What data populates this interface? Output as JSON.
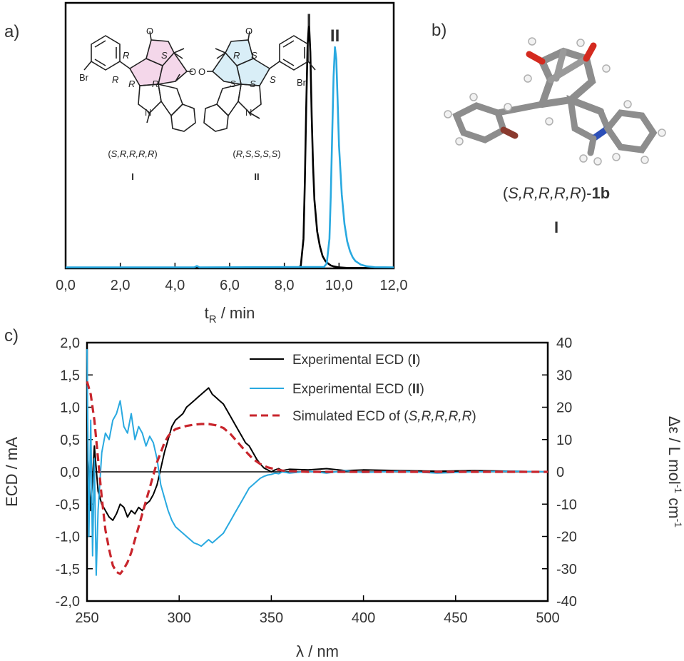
{
  "panels": {
    "a": "a)",
    "b": "b)",
    "c": "c)"
  },
  "chart_data": [
    {
      "type": "line",
      "panel": "a",
      "xlabel_main": "t",
      "xlabel_sub": "R",
      "xlabel_rest": " / min",
      "ylabel": "",
      "xlim": [
        0,
        12
      ],
      "ylim": [
        0,
        1.08
      ],
      "x_ticks": [
        "0,0",
        "2,0",
        "4,0",
        "6,0",
        "8,0",
        "10,0",
        "12,0"
      ],
      "x_tick_values": [
        0,
        2,
        4,
        6,
        8,
        10,
        12
      ],
      "peak_labels": [
        {
          "text": "I",
          "x": 8.9,
          "color": "#111111"
        },
        {
          "text": "II",
          "x": 9.85,
          "color": "#1a1a1a"
        }
      ],
      "series": [
        {
          "color": "#000000",
          "x": [
            0,
            8.5,
            8.6,
            8.7,
            8.75,
            8.8,
            8.85,
            8.9,
            8.95,
            9.0,
            9.05,
            9.1,
            9.2,
            9.3,
            9.4,
            9.5,
            9.6,
            9.7,
            9.8,
            10.0,
            10.3,
            12.0
          ],
          "values": [
            0.002,
            0.003,
            0.01,
            0.12,
            0.35,
            0.65,
            0.9,
            1.0,
            0.88,
            0.62,
            0.42,
            0.28,
            0.15,
            0.09,
            0.05,
            0.03,
            0.02,
            0.012,
            0.008,
            0.004,
            0.002,
            0.002
          ]
        },
        {
          "color": "#29a9e0",
          "x": [
            0,
            4.7,
            4.8,
            4.9,
            9.45,
            9.55,
            9.65,
            9.7,
            9.75,
            9.8,
            9.85,
            9.9,
            9.95,
            10.0,
            10.1,
            10.2,
            10.3,
            10.4,
            10.5,
            10.6,
            10.8,
            11.0,
            11.3,
            12.0
          ],
          "values": [
            0.004,
            0.004,
            0.01,
            0.004,
            0.006,
            0.02,
            0.12,
            0.3,
            0.55,
            0.78,
            0.9,
            0.85,
            0.68,
            0.5,
            0.3,
            0.18,
            0.11,
            0.07,
            0.045,
            0.03,
            0.015,
            0.009,
            0.005,
            0.004
          ]
        }
      ]
    },
    {
      "type": "line",
      "panel": "c",
      "xlabel": "λ / nm",
      "ylabel": "ECD / mA",
      "ylabel2_main": "Δε / L mol",
      "ylabel2_sup1": "-1",
      "ylabel2_mid": " cm",
      "ylabel2_sup2": "-1",
      "xlim": [
        250,
        500
      ],
      "ylim": [
        -2.0,
        2.0
      ],
      "ylim2": [
        -40,
        40
      ],
      "x_ticks": [
        "250",
        "300",
        "350",
        "400",
        "450",
        "500"
      ],
      "x_tick_values": [
        250,
        300,
        350,
        400,
        450,
        500
      ],
      "y_ticks": [
        "2,0",
        "1,5",
        "1,0",
        "0,5",
        "0,0",
        "-0,5",
        "-1,0",
        "-1,5",
        "-2,0"
      ],
      "y_tick_values": [
        2.0,
        1.5,
        1.0,
        0.5,
        0.0,
        -0.5,
        -1.0,
        -1.5,
        -2.0
      ],
      "y2_ticks": [
        "40",
        "30",
        "20",
        "10",
        "0",
        "-10",
        "-20",
        "-30",
        "-40"
      ],
      "y2_tick_values": [
        40,
        30,
        20,
        10,
        0,
        -10,
        -20,
        -30,
        -40
      ],
      "legend": {
        "exp1_text": "Experimental ECD (",
        "exp1_bold": "I",
        "exp2_text": "Experimental ECD (",
        "exp2_bold": "II",
        "sim_text": "Simulated ECD of (",
        "sim_italic": "S,R,R,R,R",
        "close_paren": ")"
      },
      "series": [
        {
          "style": "solid",
          "color": "#000000",
          "x": [
            250,
            252,
            254,
            256,
            258,
            260,
            262,
            264,
            266,
            268,
            270,
            272,
            274,
            276,
            278,
            280,
            282,
            284,
            286,
            288,
            290,
            292,
            294,
            296,
            298,
            300,
            302,
            304,
            306,
            308,
            310,
            312,
            314,
            316,
            318,
            320,
            322,
            324,
            326,
            328,
            330,
            332,
            334,
            336,
            338,
            340,
            342,
            344,
            346,
            348,
            350,
            352,
            354,
            356,
            360,
            370,
            380,
            390,
            400,
            420,
            440,
            460,
            480,
            500
          ],
          "values": [
            0.5,
            -0.6,
            0.4,
            -0.3,
            -0.5,
            -0.6,
            -0.7,
            -0.75,
            -0.65,
            -0.5,
            -0.55,
            -0.7,
            -0.6,
            -0.65,
            -0.55,
            -0.6,
            -0.5,
            -0.45,
            -0.35,
            -0.2,
            0.05,
            0.3,
            0.5,
            0.7,
            0.8,
            0.85,
            0.9,
            1.0,
            1.05,
            1.1,
            1.15,
            1.2,
            1.25,
            1.3,
            1.2,
            1.15,
            1.1,
            1.05,
            0.95,
            0.85,
            0.75,
            0.65,
            0.55,
            0.45,
            0.4,
            0.3,
            0.2,
            0.12,
            0.06,
            0.03,
            0.0,
            0.03,
            0.05,
            0.02,
            0.04,
            0.03,
            0.05,
            0.02,
            0.03,
            0.02,
            0.01,
            0.02,
            0.01,
            0.0
          ]
        },
        {
          "style": "solid",
          "color": "#29a9e0",
          "x": [
            250,
            251,
            252,
            253,
            254,
            255,
            256,
            258,
            260,
            262,
            264,
            266,
            268,
            270,
            272,
            274,
            276,
            278,
            280,
            282,
            284,
            286,
            288,
            290,
            292,
            294,
            296,
            298,
            300,
            302,
            304,
            306,
            308,
            310,
            312,
            314,
            316,
            318,
            320,
            322,
            324,
            326,
            328,
            330,
            332,
            334,
            336,
            338,
            340,
            342,
            344,
            346,
            348,
            350,
            352,
            354,
            356,
            360,
            370,
            380,
            390,
            400,
            420,
            440,
            460,
            480,
            500
          ],
          "values": [
            1.9,
            -1.0,
            0.8,
            -1.3,
            0.2,
            -1.6,
            -0.6,
            0.3,
            0.6,
            0.5,
            0.8,
            0.9,
            1.1,
            0.7,
            0.6,
            0.9,
            0.5,
            0.7,
            0.6,
            0.4,
            0.55,
            0.45,
            0.2,
            -0.2,
            -0.4,
            -0.6,
            -0.75,
            -0.85,
            -0.9,
            -0.95,
            -1.0,
            -1.05,
            -1.1,
            -1.12,
            -1.15,
            -1.1,
            -1.05,
            -1.1,
            -1.05,
            -1.0,
            -0.95,
            -0.85,
            -0.75,
            -0.65,
            -0.55,
            -0.45,
            -0.35,
            -0.25,
            -0.2,
            -0.15,
            -0.1,
            -0.07,
            -0.05,
            -0.04,
            -0.02,
            -0.03,
            0.0,
            -0.02,
            0.01,
            -0.02,
            0.02,
            -0.01,
            0.01,
            -0.02,
            0.0,
            0.01,
            0.0
          ]
        },
        {
          "style": "dashed",
          "color": "#c8252c",
          "x": [
            250,
            252,
            254,
            256,
            258,
            260,
            262,
            264,
            266,
            268,
            270,
            272,
            274,
            276,
            278,
            280,
            282,
            284,
            286,
            288,
            290,
            292,
            294,
            296,
            298,
            300,
            304,
            308,
            312,
            316,
            320,
            324,
            328,
            332,
            336,
            340,
            344,
            348,
            352,
            356,
            360,
            370,
            380,
            400,
            450,
            500
          ],
          "values": [
            1.4,
            1.2,
            0.8,
            0.2,
            -0.4,
            -0.9,
            -1.2,
            -1.45,
            -1.55,
            -1.58,
            -1.5,
            -1.4,
            -1.25,
            -1.05,
            -0.85,
            -0.65,
            -0.45,
            -0.25,
            -0.05,
            0.15,
            0.3,
            0.45,
            0.55,
            0.62,
            0.66,
            0.68,
            0.71,
            0.73,
            0.74,
            0.74,
            0.72,
            0.68,
            0.58,
            0.45,
            0.32,
            0.2,
            0.12,
            0.07,
            0.04,
            0.02,
            0.01,
            0.0,
            0.0,
            0.0,
            0.0,
            0.0
          ]
        }
      ]
    }
  ],
  "structures": {
    "I": {
      "br": "Br",
      "o1": "O",
      "o2": "O",
      "n": "N",
      "stereo": [
        "R",
        "S",
        "R",
        "R",
        "R"
      ],
      "config_open": "(",
      "config_letters": "S,R,R,R,R",
      "config_close": ")",
      "label": "I"
    },
    "II": {
      "br": "Br",
      "o1": "O",
      "o2": "O",
      "n": "N",
      "stereo": [
        "R",
        "S",
        "S",
        "S",
        "S"
      ],
      "config_open": "(",
      "config_letters": "R,S,S,S,S",
      "config_close": ")",
      "label": "II"
    }
  },
  "model": {
    "caption_open": "(",
    "caption_config": "S,R,R,R,R",
    "caption_close": ")-",
    "caption_bold": "1b",
    "label": "I",
    "colors": {
      "carbon": "#8d8d8d",
      "hydrogen": "#f2f2f2",
      "oxygen": "#d42a1f",
      "nitrogen": "#2c4fb8",
      "bromine": "#8a3a2e"
    }
  }
}
